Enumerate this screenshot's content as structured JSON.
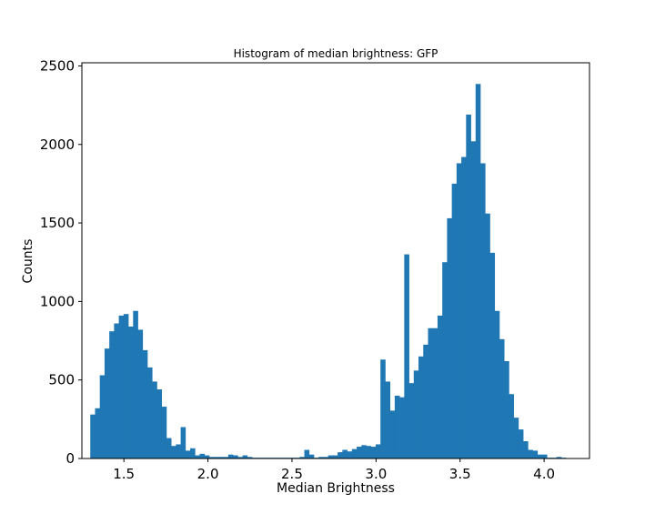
{
  "chart_data": {
    "type": "bar",
    "title": "Histogram of median brightness: GFP",
    "xlabel": "Median Brightness",
    "ylabel": "Counts",
    "xlim": [
      1.25,
      4.27
    ],
    "ylim": [
      0,
      2520
    ],
    "x_ticks": [
      {
        "value": 1.5,
        "label": "1.5"
      },
      {
        "value": 2.0,
        "label": "2.0"
      },
      {
        "value": 2.5,
        "label": "2.5"
      },
      {
        "value": 3.0,
        "label": "3.0"
      },
      {
        "value": 3.5,
        "label": "3.5"
      },
      {
        "value": 4.0,
        "label": "4.0"
      }
    ],
    "y_ticks": [
      {
        "value": 0,
        "label": "0"
      },
      {
        "value": 500,
        "label": "500"
      },
      {
        "value": 1000,
        "label": "1000"
      },
      {
        "value": 1500,
        "label": "1500"
      },
      {
        "value": 2000,
        "label": "2000"
      },
      {
        "value": 2500,
        "label": "2500"
      }
    ],
    "bin_start": 1.3,
    "bin_width": 0.0283,
    "values": [
      280,
      320,
      530,
      700,
      810,
      860,
      910,
      920,
      840,
      940,
      820,
      690,
      580,
      490,
      440,
      330,
      130,
      80,
      90,
      200,
      50,
      65,
      20,
      30,
      20,
      10,
      10,
      10,
      10,
      25,
      20,
      10,
      20,
      10,
      5,
      5,
      5,
      5,
      5,
      5,
      5,
      5,
      5,
      5,
      10,
      55,
      25,
      5,
      10,
      10,
      20,
      20,
      40,
      55,
      45,
      60,
      75,
      85,
      80,
      75,
      90,
      630,
      490,
      305,
      400,
      390,
      1300,
      480,
      560,
      650,
      725,
      830,
      830,
      910,
      1250,
      1530,
      1750,
      1880,
      1920,
      2190,
      2020,
      2385,
      1880,
      1560,
      1310,
      940,
      760,
      620,
      410,
      260,
      185,
      110,
      55,
      50,
      25,
      25,
      5,
      5,
      10,
      5
    ]
  }
}
